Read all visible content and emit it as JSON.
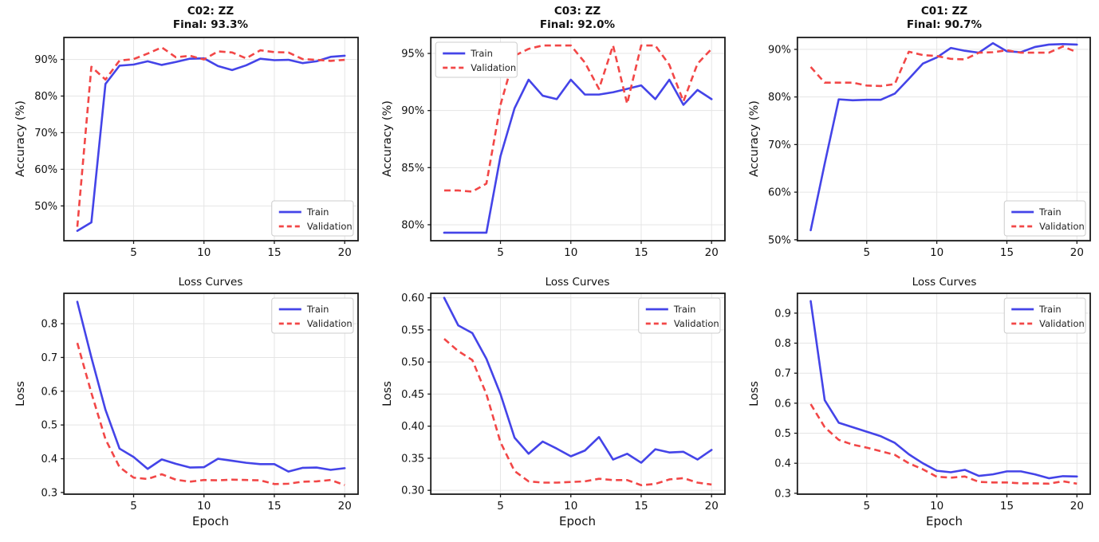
{
  "figure_title": "Training curves grid",
  "palette": {
    "train_color": "#4444E8",
    "validation_color": "#F24747",
    "grid_color": "#E5E5E5",
    "spine_color": "#1a1a1a",
    "background": "#ffffff"
  },
  "chart_data": [
    {
      "type": "line",
      "title": "C02: ZZ",
      "subtitle": "Final: 93.3%",
      "ylabel": "Accuracy (%)",
      "xlabel": "",
      "legend": "lower right",
      "grid": true,
      "grid_color": "#E5E5E5",
      "xlim": [
        0.05,
        20.95
      ],
      "ylim": [
        40.5,
        96.0
      ],
      "xticks": [
        5,
        10,
        15,
        20
      ],
      "yticks": {
        "values": [
          50,
          60,
          70,
          80,
          90
        ],
        "labels": [
          "50%",
          "60%",
          "70%",
          "80%",
          "90%"
        ]
      },
      "x": [
        1,
        2,
        3,
        4,
        5,
        6,
        7,
        8,
        9,
        10,
        11,
        12,
        13,
        14,
        15,
        16,
        17,
        18,
        19,
        20
      ],
      "series": [
        {
          "name": "Train",
          "color": "#4444E8",
          "dash": false,
          "values": [
            43.2,
            45.5,
            83.3,
            88.3,
            88.6,
            89.5,
            88.5,
            89.3,
            90.2,
            90.3,
            88.2,
            87.1,
            88.4,
            90.2,
            89.8,
            89.9,
            89.0,
            89.5,
            90.7,
            91.0
          ]
        },
        {
          "name": "Validation",
          "color": "#F24747",
          "dash": true,
          "values": [
            44.3,
            88.0,
            84.5,
            89.7,
            90.1,
            91.6,
            93.3,
            90.6,
            91.0,
            90.0,
            92.2,
            91.9,
            90.3,
            92.5,
            92.0,
            91.9,
            90.1,
            89.9,
            89.6,
            89.9
          ]
        }
      ]
    },
    {
      "type": "line",
      "title": "C03: ZZ",
      "subtitle": "Final: 92.0%",
      "ylabel": "Accuracy (%)",
      "xlabel": "",
      "legend": "upper left",
      "grid": true,
      "grid_color": "#E5E5E5",
      "xlim": [
        0.05,
        20.95
      ],
      "ylim": [
        78.6,
        96.4
      ],
      "xticks": [
        5,
        10,
        15,
        20
      ],
      "yticks": {
        "values": [
          80,
          85,
          90,
          95
        ],
        "labels": [
          "80%",
          "85%",
          "90%",
          "95%"
        ]
      },
      "x": [
        1,
        2,
        3,
        4,
        5,
        6,
        7,
        8,
        9,
        10,
        11,
        12,
        13,
        14,
        15,
        16,
        17,
        18,
        19,
        20
      ],
      "series": [
        {
          "name": "Train",
          "color": "#4444E8",
          "dash": false,
          "values": [
            79.3,
            79.3,
            79.3,
            79.3,
            86.0,
            90.2,
            92.7,
            91.3,
            91.0,
            92.7,
            91.4,
            91.4,
            91.6,
            91.9,
            92.2,
            91.0,
            92.7,
            90.5,
            91.8,
            91.0
          ]
        },
        {
          "name": "Validation",
          "color": "#F24747",
          "dash": true,
          "values": [
            83.0,
            83.0,
            82.9,
            83.6,
            90.5,
            94.8,
            95.4,
            95.7,
            95.7,
            95.7,
            94.2,
            91.9,
            95.7,
            90.6,
            95.7,
            95.7,
            94.0,
            90.8,
            94.1,
            95.4
          ]
        }
      ]
    },
    {
      "type": "line",
      "title": "C01: ZZ",
      "subtitle": "Final: 90.7%",
      "ylabel": "Accuracy (%)",
      "xlabel": "",
      "legend": "lower right",
      "grid": true,
      "grid_color": "#E5E5E5",
      "xlim": [
        0.05,
        20.95
      ],
      "ylim": [
        49.8,
        92.5
      ],
      "xticks": [
        5,
        10,
        15,
        20
      ],
      "yticks": {
        "values": [
          50,
          60,
          70,
          80,
          90
        ],
        "labels": [
          "50%",
          "60%",
          "70%",
          "80%",
          "90%"
        ]
      },
      "x": [
        1,
        2,
        3,
        4,
        5,
        6,
        7,
        8,
        9,
        10,
        11,
        12,
        13,
        14,
        15,
        16,
        17,
        18,
        19,
        20
      ],
      "series": [
        {
          "name": "Train",
          "color": "#4444E8",
          "dash": false,
          "values": [
            52.0,
            66.0,
            79.5,
            79.3,
            79.4,
            79.4,
            80.7,
            83.8,
            87.0,
            88.3,
            90.3,
            89.7,
            89.3,
            91.3,
            89.6,
            89.4,
            90.5,
            91.0,
            91.1,
            91.0
          ]
        },
        {
          "name": "Validation",
          "color": "#F24747",
          "dash": true,
          "values": [
            86.3,
            83.0,
            83.0,
            83.0,
            82.4,
            82.3,
            82.7,
            89.5,
            88.8,
            88.6,
            88.0,
            87.9,
            89.3,
            89.4,
            89.8,
            89.3,
            89.3,
            89.3,
            90.6,
            89.4
          ]
        }
      ]
    },
    {
      "type": "line",
      "title": "Loss Curves",
      "subtitle": "",
      "ylabel": "Loss",
      "xlabel": "Epoch",
      "legend": "upper right",
      "grid": true,
      "grid_color": "#E5E5E5",
      "xlim": [
        0.05,
        20.95
      ],
      "ylim": [
        0.295,
        0.89
      ],
      "xticks": [
        5,
        10,
        15,
        20
      ],
      "yticks": {
        "values": [
          0.3,
          0.4,
          0.5,
          0.6,
          0.7,
          0.8
        ],
        "labels": [
          "0.3",
          "0.4",
          "0.5",
          "0.6",
          "0.7",
          "0.8"
        ]
      },
      "x": [
        1,
        2,
        3,
        4,
        5,
        6,
        7,
        8,
        9,
        10,
        11,
        12,
        13,
        14,
        15,
        16,
        17,
        18,
        19,
        20
      ],
      "series": [
        {
          "name": "Train",
          "color": "#4444E8",
          "dash": false,
          "values": [
            0.865,
            0.7,
            0.545,
            0.43,
            0.405,
            0.37,
            0.398,
            0.385,
            0.374,
            0.375,
            0.4,
            0.394,
            0.388,
            0.384,
            0.384,
            0.362,
            0.373,
            0.374,
            0.367,
            0.372
          ]
        },
        {
          "name": "Validation",
          "color": "#F24747",
          "dash": true,
          "values": [
            0.743,
            0.595,
            0.458,
            0.375,
            0.344,
            0.34,
            0.354,
            0.338,
            0.332,
            0.337,
            0.336,
            0.338,
            0.337,
            0.336,
            0.325,
            0.326,
            0.332,
            0.333,
            0.337,
            0.322
          ]
        }
      ]
    },
    {
      "type": "line",
      "title": "Loss Curves",
      "subtitle": "",
      "ylabel": "Loss",
      "xlabel": "Epoch",
      "legend": "upper right",
      "grid": true,
      "grid_color": "#E5E5E5",
      "xlim": [
        0.05,
        20.95
      ],
      "ylim": [
        0.294,
        0.607
      ],
      "xticks": [
        5,
        10,
        15,
        20
      ],
      "yticks": {
        "values": [
          0.3,
          0.35,
          0.4,
          0.45,
          0.5,
          0.55,
          0.6
        ],
        "labels": [
          "0.30",
          "0.35",
          "0.40",
          "0.45",
          "0.50",
          "0.55",
          "0.60"
        ]
      },
      "x": [
        1,
        2,
        3,
        4,
        5,
        6,
        7,
        8,
        9,
        10,
        11,
        12,
        13,
        14,
        15,
        16,
        17,
        18,
        19,
        20
      ],
      "series": [
        {
          "name": "Train",
          "color": "#4444E8",
          "dash": false,
          "values": [
            0.6,
            0.557,
            0.545,
            0.505,
            0.45,
            0.382,
            0.357,
            0.376,
            0.365,
            0.353,
            0.362,
            0.383,
            0.348,
            0.357,
            0.343,
            0.364,
            0.359,
            0.36,
            0.348,
            0.363
          ]
        },
        {
          "name": "Validation",
          "color": "#F24747",
          "dash": true,
          "values": [
            0.536,
            0.517,
            0.503,
            0.45,
            0.375,
            0.33,
            0.314,
            0.312,
            0.312,
            0.313,
            0.314,
            0.318,
            0.316,
            0.316,
            0.308,
            0.31,
            0.317,
            0.319,
            0.312,
            0.309
          ]
        }
      ]
    },
    {
      "type": "line",
      "title": "Loss Curves",
      "subtitle": "",
      "ylabel": "Loss",
      "xlabel": "Epoch",
      "legend": "upper right",
      "grid": true,
      "grid_color": "#E5E5E5",
      "xlim": [
        0.05,
        20.95
      ],
      "ylim": [
        0.297,
        0.966
      ],
      "xticks": [
        5,
        10,
        15,
        20
      ],
      "yticks": {
        "values": [
          0.3,
          0.4,
          0.5,
          0.6,
          0.7,
          0.8,
          0.9
        ],
        "labels": [
          "0.3",
          "0.4",
          "0.5",
          "0.6",
          "0.7",
          "0.8",
          "0.9"
        ]
      },
      "x": [
        1,
        2,
        3,
        4,
        5,
        6,
        7,
        8,
        9,
        10,
        11,
        12,
        13,
        14,
        15,
        16,
        17,
        18,
        19,
        20
      ],
      "series": [
        {
          "name": "Train",
          "color": "#4444E8",
          "dash": false,
          "values": [
            0.94,
            0.61,
            0.535,
            0.52,
            0.505,
            0.49,
            0.468,
            0.43,
            0.4,
            0.375,
            0.37,
            0.378,
            0.358,
            0.363,
            0.373,
            0.373,
            0.363,
            0.35,
            0.357,
            0.356
          ]
        },
        {
          "name": "Validation",
          "color": "#F24747",
          "dash": true,
          "values": [
            0.597,
            0.52,
            0.478,
            0.462,
            0.452,
            0.44,
            0.428,
            0.4,
            0.38,
            0.355,
            0.352,
            0.356,
            0.338,
            0.336,
            0.336,
            0.333,
            0.333,
            0.332,
            0.34,
            0.332
          ]
        }
      ]
    }
  ]
}
